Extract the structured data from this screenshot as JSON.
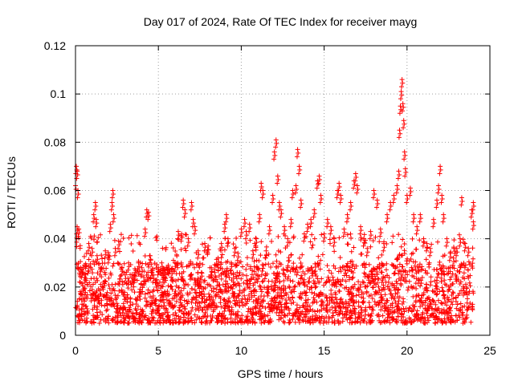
{
  "chart_data": {
    "type": "scatter",
    "title": "Day 017 of 2024, Rate Of TEC Index for receiver mayg",
    "xlabel": "GPS time / hours",
    "ylabel": "ROTI / TECUs",
    "xlim": [
      0,
      25
    ],
    "ylim": [
      0,
      0.12
    ],
    "xticks": [
      0,
      5,
      10,
      15,
      20,
      25
    ],
    "yticks": [
      0,
      0.02,
      0.04,
      0.06,
      0.08,
      0.1,
      0.12
    ],
    "xtick_labels": [
      "0",
      "5",
      "10",
      "15",
      "20",
      "25"
    ],
    "ytick_labels": [
      "0",
      "0.02",
      "0.04",
      "0.06",
      "0.08",
      "0.1",
      "0.12"
    ],
    "grid": true,
    "marker": "plus",
    "color": "#ff0000",
    "series": [
      {
        "name": "ROTI",
        "points": [
          [
            0.0,
            0.062
          ],
          [
            0.05,
            0.07
          ],
          [
            0.1,
            0.068
          ],
          [
            0.15,
            0.06
          ],
          [
            0.1,
            0.045
          ],
          [
            0.2,
            0.044
          ],
          [
            0.3,
            0.028
          ],
          [
            0.4,
            0.027
          ],
          [
            0.6,
            0.025
          ],
          [
            0.8,
            0.038
          ],
          [
            1.0,
            0.036
          ],
          [
            1.1,
            0.05
          ],
          [
            1.2,
            0.055
          ],
          [
            1.25,
            0.048
          ],
          [
            1.3,
            0.033
          ],
          [
            1.5,
            0.028
          ],
          [
            1.7,
            0.022
          ],
          [
            1.8,
            0.035
          ],
          [
            2.0,
            0.033
          ],
          [
            2.1,
            0.046
          ],
          [
            2.2,
            0.055
          ],
          [
            2.25,
            0.06
          ],
          [
            2.3,
            0.05
          ],
          [
            2.4,
            0.036
          ],
          [
            2.6,
            0.039
          ],
          [
            2.8,
            0.028
          ],
          [
            3.0,
            0.025
          ],
          [
            3.2,
            0.03
          ],
          [
            3.4,
            0.024
          ],
          [
            3.6,
            0.026
          ],
          [
            3.8,
            0.03
          ],
          [
            4.0,
            0.028
          ],
          [
            4.2,
            0.044
          ],
          [
            4.3,
            0.052
          ],
          [
            4.4,
            0.051
          ],
          [
            4.5,
            0.033
          ],
          [
            4.7,
            0.025
          ],
          [
            4.9,
            0.023
          ],
          [
            5.0,
            0.028
          ],
          [
            5.2,
            0.03
          ],
          [
            5.4,
            0.025
          ],
          [
            5.6,
            0.029
          ],
          [
            5.8,
            0.027
          ],
          [
            6.0,
            0.03
          ],
          [
            6.2,
            0.043
          ],
          [
            6.4,
            0.042
          ],
          [
            6.5,
            0.056
          ],
          [
            6.6,
            0.052
          ],
          [
            6.8,
            0.04
          ],
          [
            7.0,
            0.055
          ],
          [
            7.1,
            0.048
          ],
          [
            7.2,
            0.045
          ],
          [
            7.4,
            0.035
          ],
          [
            7.6,
            0.026
          ],
          [
            7.8,
            0.038
          ],
          [
            8.0,
            0.037
          ],
          [
            8.2,
            0.028
          ],
          [
            8.4,
            0.026
          ],
          [
            8.6,
            0.032
          ],
          [
            8.8,
            0.038
          ],
          [
            9.0,
            0.046
          ],
          [
            9.1,
            0.05
          ],
          [
            9.2,
            0.04
          ],
          [
            9.4,
            0.03
          ],
          [
            9.6,
            0.036
          ],
          [
            9.8,
            0.034
          ],
          [
            10.0,
            0.044
          ],
          [
            10.2,
            0.048
          ],
          [
            10.3,
            0.043
          ],
          [
            10.5,
            0.046
          ],
          [
            10.7,
            0.035
          ],
          [
            10.9,
            0.04
          ],
          [
            11.1,
            0.05
          ],
          [
            11.2,
            0.063
          ],
          [
            11.3,
            0.06
          ],
          [
            11.5,
            0.035
          ],
          [
            11.7,
            0.045
          ],
          [
            11.9,
            0.058
          ],
          [
            12.0,
            0.076
          ],
          [
            12.1,
            0.081
          ],
          [
            12.2,
            0.066
          ],
          [
            12.3,
            0.055
          ],
          [
            12.4,
            0.052
          ],
          [
            12.6,
            0.045
          ],
          [
            12.8,
            0.04
          ],
          [
            13.0,
            0.048
          ],
          [
            13.1,
            0.06
          ],
          [
            13.3,
            0.062
          ],
          [
            13.4,
            0.077
          ],
          [
            13.5,
            0.07
          ],
          [
            13.6,
            0.056
          ],
          [
            13.8,
            0.042
          ],
          [
            14.0,
            0.046
          ],
          [
            14.2,
            0.048
          ],
          [
            14.4,
            0.052
          ],
          [
            14.6,
            0.064
          ],
          [
            14.7,
            0.066
          ],
          [
            14.8,
            0.058
          ],
          [
            15.0,
            0.042
          ],
          [
            15.2,
            0.048
          ],
          [
            15.4,
            0.045
          ],
          [
            15.6,
            0.04
          ],
          [
            15.8,
            0.06
          ],
          [
            15.9,
            0.063
          ],
          [
            16.0,
            0.058
          ],
          [
            16.2,
            0.044
          ],
          [
            16.4,
            0.05
          ],
          [
            16.6,
            0.055
          ],
          [
            16.8,
            0.064
          ],
          [
            16.9,
            0.067
          ],
          [
            17.0,
            0.062
          ],
          [
            17.2,
            0.045
          ],
          [
            17.4,
            0.04
          ],
          [
            17.6,
            0.036
          ],
          [
            17.8,
            0.043
          ],
          [
            18.0,
            0.06
          ],
          [
            18.2,
            0.056
          ],
          [
            18.4,
            0.044
          ],
          [
            18.6,
            0.038
          ],
          [
            18.8,
            0.05
          ],
          [
            19.0,
            0.055
          ],
          [
            19.2,
            0.058
          ],
          [
            19.4,
            0.062
          ],
          [
            19.5,
            0.068
          ],
          [
            19.55,
            0.085
          ],
          [
            19.6,
            0.095
          ],
          [
            19.65,
            0.101
          ],
          [
            19.7,
            0.106
          ],
          [
            19.75,
            0.096
          ],
          [
            19.8,
            0.089
          ],
          [
            19.85,
            0.076
          ],
          [
            19.9,
            0.069
          ],
          [
            20.0,
            0.058
          ],
          [
            20.2,
            0.061
          ],
          [
            20.4,
            0.05
          ],
          [
            20.6,
            0.045
          ],
          [
            20.8,
            0.05
          ],
          [
            21.0,
            0.04
          ],
          [
            21.2,
            0.038
          ],
          [
            21.4,
            0.036
          ],
          [
            21.6,
            0.048
          ],
          [
            21.8,
            0.056
          ],
          [
            21.9,
            0.062
          ],
          [
            22.0,
            0.07
          ],
          [
            22.1,
            0.058
          ],
          [
            22.2,
            0.05
          ],
          [
            22.4,
            0.04
          ],
          [
            22.6,
            0.034
          ],
          [
            22.8,
            0.032
          ],
          [
            23.0,
            0.036
          ],
          [
            23.2,
            0.04
          ],
          [
            23.3,
            0.057
          ],
          [
            23.5,
            0.038
          ],
          [
            23.7,
            0.036
          ],
          [
            23.9,
            0.052
          ],
          [
            24.0,
            0.055
          ],
          [
            24.0,
            0.047
          ]
        ]
      }
    ],
    "band": {
      "description": "dense background scatter of ROTI values throughout the day",
      "typical_range": [
        0.005,
        0.03
      ]
    }
  }
}
